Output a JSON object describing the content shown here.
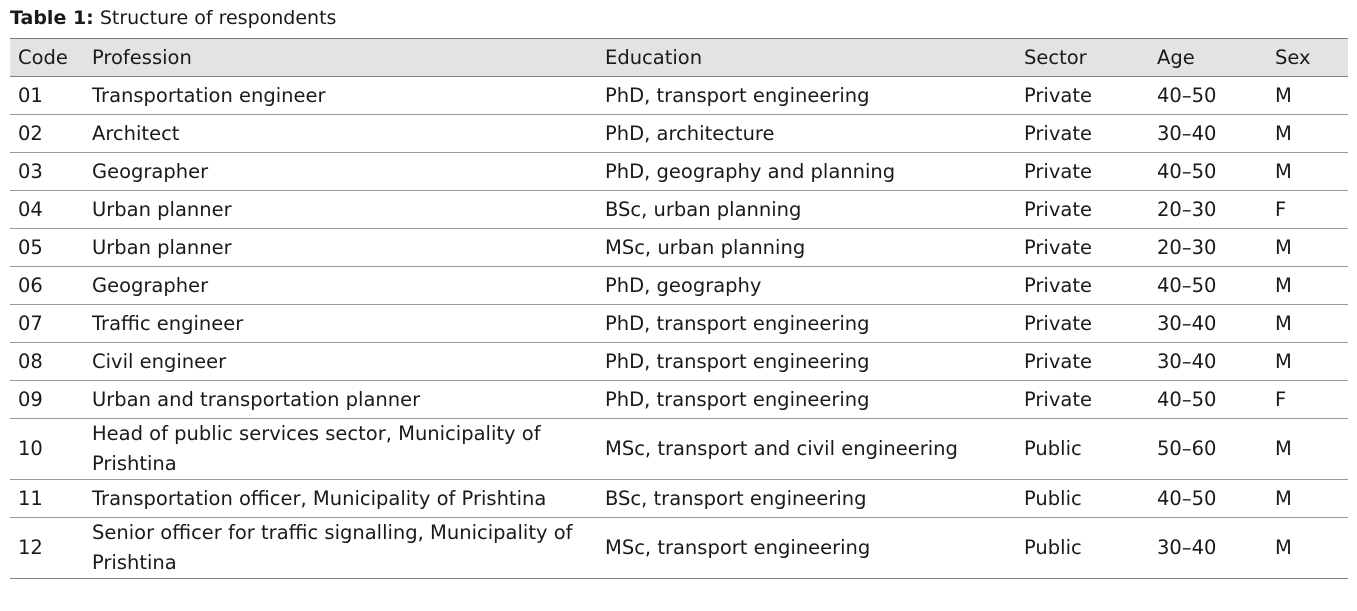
{
  "caption": {
    "label": "Table 1:",
    "title": "Structure of respondents"
  },
  "columns": [
    "Code",
    "Profession",
    "Education",
    "Sector",
    "Age",
    "Sex"
  ],
  "rows": [
    [
      "01",
      "Transportation engineer",
      "PhD, transport engineering",
      "Private",
      "40–50",
      "M"
    ],
    [
      "02",
      "Architect",
      "PhD, architecture",
      "Private",
      "30–40",
      "M"
    ],
    [
      "03",
      "Geographer",
      "PhD, geography and planning",
      "Private",
      "40–50",
      "M"
    ],
    [
      "04",
      "Urban planner",
      "BSc, urban planning",
      "Private",
      "20–30",
      "F"
    ],
    [
      "05",
      "Urban planner",
      "MSc, urban planning",
      "Private",
      "20–30",
      "M"
    ],
    [
      "06",
      "Geographer",
      "PhD, geography",
      "Private",
      "40–50",
      "M"
    ],
    [
      "07",
      "Traffic engineer",
      "PhD, transport engineering",
      "Private",
      "30–40",
      "M"
    ],
    [
      "08",
      "Civil engineer",
      "PhD, transport engineering",
      "Private",
      "30–40",
      "M"
    ],
    [
      "09",
      "Urban and transportation planner",
      "PhD, transport engineering",
      "Private",
      "40–50",
      "F"
    ],
    [
      "10",
      "Head of public services sector, Municipality of Prishtina",
      "MSc, transport and civil engineering",
      "Public",
      "50–60",
      "M"
    ],
    [
      "11",
      "Transportation officer, Municipality of Prishtina",
      "BSc, transport engineering",
      "Public",
      "40–50",
      "M"
    ],
    [
      "12",
      "Senior officer for traffic signalling, Municipality of Prishtina",
      "MSc, transport engineering",
      "Public",
      "30–40",
      "M"
    ]
  ]
}
